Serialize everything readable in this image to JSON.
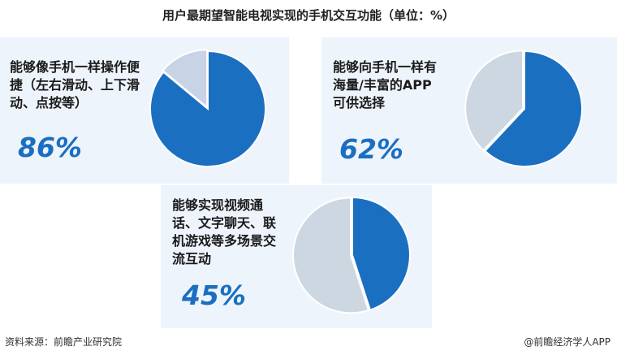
{
  "title": "用户最期望智能电视实现的手机交互功能（单位：%）",
  "source": "资料来源：前瞻产业研究院",
  "credit": "@前瞻经济学人APP",
  "colors": {
    "primary": "#1a6fc1",
    "remainder_light": "#c8d3e6",
    "remainder_gray": "#cdd7e2",
    "panel_bg": "#eef4fb"
  },
  "chart_data": [
    {
      "type": "pie",
      "label_lines": [
        "能够像手机一样操作便",
        "捷（左右滑动、上下滑",
        "动、点按等）"
      ],
      "value_text": "86%",
      "values": [
        86,
        14
      ],
      "unit": "%"
    },
    {
      "type": "pie",
      "label_lines": [
        "能够向手机一样有",
        "海量/丰富的APP",
        "可供选择"
      ],
      "value_text": "62%",
      "values": [
        62,
        38
      ],
      "unit": "%"
    },
    {
      "type": "pie",
      "label_lines": [
        "能够实现视频通",
        "话、文字聊天、联",
        "机游戏等多场景交",
        "流互动"
      ],
      "value_text": "45%",
      "values": [
        45,
        55
      ],
      "unit": "%"
    }
  ]
}
